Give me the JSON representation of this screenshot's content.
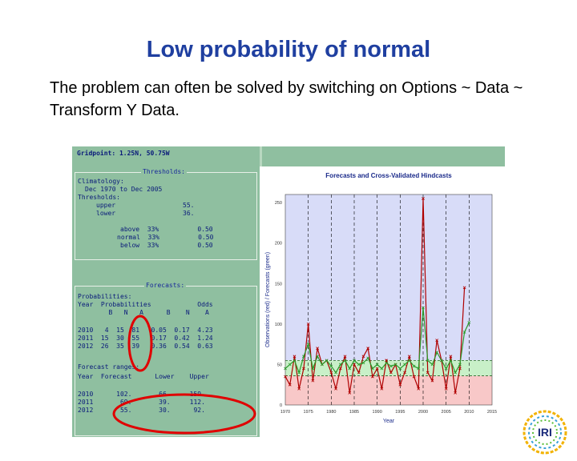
{
  "slide": {
    "title": "Low probability of normal",
    "body": "The problem can often be solved by switching on Options ~ Data ~ Transform Y Data."
  },
  "left_panel": {
    "gridpoint": "Gridpoint: 1.25N, 50.75W",
    "thresholds": {
      "heading": "Thresholds:",
      "climatology_label": "Climatology:",
      "climatology_period": "Dec 1970 to Dec 2005",
      "thresholds_label": "Thresholds:",
      "upper_label": "upper",
      "upper_value": "55.",
      "lower_label": "lower",
      "lower_value": "36.",
      "rows": [
        {
          "name": "above",
          "pct": "33%",
          "val": "0.50"
        },
        {
          "name": "normal",
          "pct": "33%",
          "val": "0.50"
        },
        {
          "name": "below",
          "pct": "33%",
          "val": "0.50"
        }
      ]
    },
    "forecasts": {
      "heading": "Forecasts:",
      "probabilities_label": "Probabilities:",
      "header1": "Year  Probabilities            Odds",
      "header2": "        B   N   A      B    N    A",
      "rows": [
        "2010   4  15  81   0.05  0.17  4.23",
        "2011  15  30  55   0.17  0.42  1.24",
        "2012  26  35  39   0.36  0.54  0.63"
      ]
    },
    "ranges": {
      "label": "Forecast ranges:",
      "header": "Year  Forecast      Lower    Upper",
      "rows": [
        "2010      102.       66.     159.",
        "2011       69.       39.     112.",
        "2012       55.       30.      92."
      ]
    }
  },
  "chart_data": {
    "type": "line",
    "title": "Forecasts and Cross-Validated Hindcasts",
    "xlabel": "Year",
    "ylabel": "Observations (red) / Forecasts (green)",
    "xlim": [
      1970,
      2015
    ],
    "ylim": [
      0,
      260
    ],
    "x_ticks": [
      1970,
      1975,
      1980,
      1985,
      1990,
      1995,
      2000,
      2005,
      2010,
      2015
    ],
    "y_ticks": [
      0,
      50,
      100,
      150,
      200,
      250
    ],
    "thresholds": {
      "lower": 36,
      "upper": 55
    },
    "series": [
      {
        "color": "#b00000",
        "x": [
          1970,
          1971,
          1972,
          1973,
          1974,
          1975,
          1976,
          1977,
          1978,
          1979,
          1980,
          1981,
          1982,
          1983,
          1984,
          1985,
          1986,
          1987,
          1988,
          1989,
          1990,
          1991,
          1992,
          1993,
          1994,
          1995,
          1996,
          1997,
          1998,
          1999,
          2000,
          2001,
          2002,
          2003,
          2004,
          2005,
          2006,
          2007,
          2008,
          2009
        ],
        "values": [
          35,
          25,
          60,
          20,
          45,
          100,
          30,
          70,
          50,
          55,
          40,
          20,
          45,
          60,
          15,
          50,
          40,
          60,
          70,
          35,
          45,
          20,
          55,
          40,
          50,
          25,
          40,
          60,
          35,
          20,
          255,
          40,
          30,
          80,
          55,
          20,
          60,
          15,
          45,
          145
        ]
      },
      {
        "color": "#2a9a2a",
        "x": [
          1970,
          1971,
          1972,
          1973,
          1974,
          1975,
          1976,
          1977,
          1978,
          1979,
          1980,
          1981,
          1982,
          1983,
          1984,
          1985,
          1986,
          1987,
          1988,
          1989,
          1990,
          1991,
          1992,
          1993,
          1994,
          1995,
          1996,
          1997,
          1998,
          1999,
          2000,
          2001,
          2002,
          2003,
          2004,
          2005,
          2006,
          2007,
          2008,
          2009,
          2010
        ],
        "values": [
          45,
          50,
          55,
          40,
          60,
          75,
          45,
          60,
          50,
          55,
          48,
          40,
          50,
          55,
          45,
          55,
          50,
          52,
          58,
          45,
          50,
          45,
          52,
          48,
          50,
          45,
          50,
          55,
          48,
          45,
          120,
          55,
          50,
          65,
          55,
          45,
          55,
          40,
          50,
          90,
          102
        ]
      }
    ]
  },
  "colors": {
    "title": "#1f3fa0",
    "panel_bg": "#8fbfa0",
    "panel_text": "#0a1a7a",
    "plot_bg": "#d8dcf8",
    "above_band": "#d8dcf8",
    "normal_band": "#c8f0c8",
    "below_band": "#f8c8c8",
    "highlight": "#e00000"
  }
}
